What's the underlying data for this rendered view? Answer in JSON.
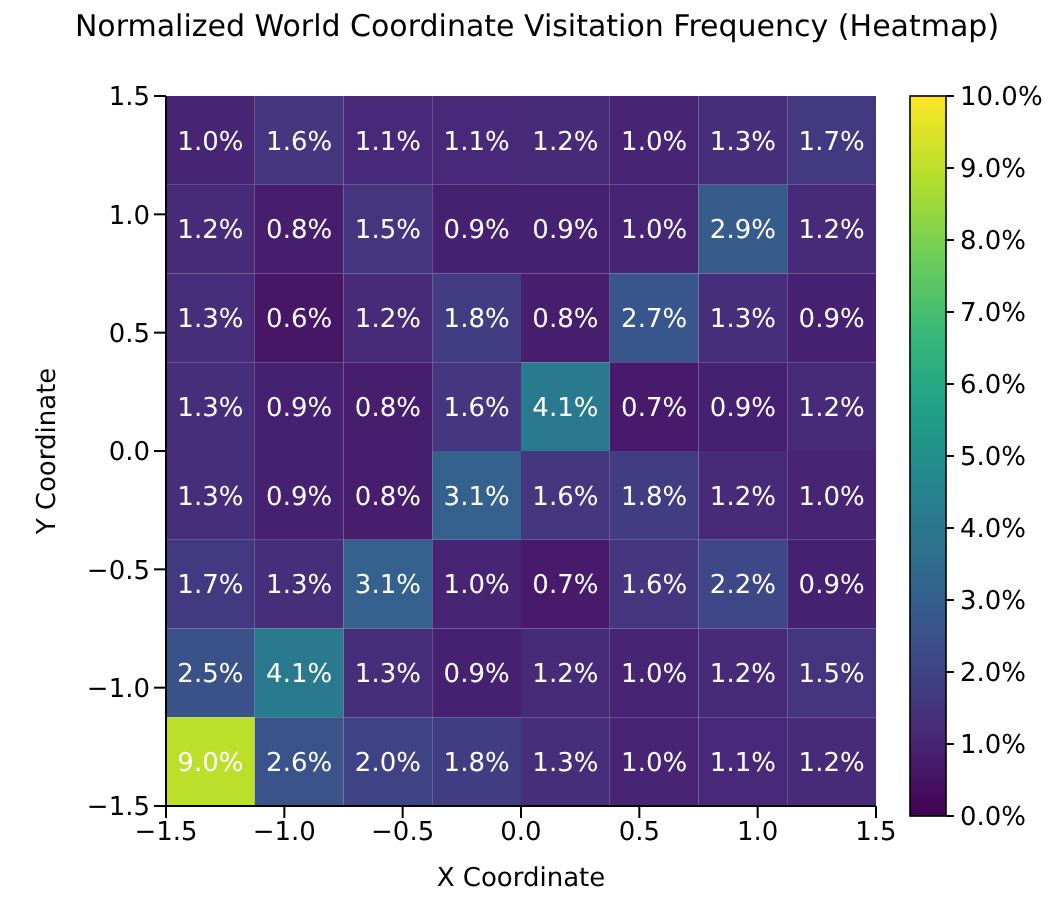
{
  "chart_data": {
    "type": "heatmap",
    "title": "Normalized World Coordinate Visitation Frequency (Heatmap)",
    "xlabel": "X Coordinate",
    "ylabel": "Y Coordinate",
    "xlim": [
      -1.5,
      1.5
    ],
    "xticks": [
      {
        "value": -1.5,
        "label": "−1.5"
      },
      {
        "value": -1,
        "label": "−1.0"
      },
      {
        "value": -0.5,
        "label": "−0.5"
      },
      {
        "value": 0,
        "label": "0.0"
      },
      {
        "value": 0.5,
        "label": "0.5"
      },
      {
        "value": 1,
        "label": "1.0"
      },
      {
        "value": 1.5,
        "label": "1.5"
      }
    ],
    "ylim": [
      -1.5,
      1.5
    ],
    "yticks": [
      {
        "value": -1.5,
        "label": "−1.5"
      },
      {
        "value": -1,
        "label": "−1.0"
      },
      {
        "value": -0.5,
        "label": "−0.5"
      },
      {
        "value": 0,
        "label": "0.0"
      },
      {
        "value": 0.5,
        "label": "0.5"
      },
      {
        "value": 1,
        "label": "1.0"
      },
      {
        "value": 1.5,
        "label": "1.5"
      }
    ],
    "cells": [
      [
        1.0,
        1.6,
        1.1,
        1.1,
        1.2,
        1.0,
        1.3,
        1.7
      ],
      [
        1.2,
        0.8,
        1.5,
        0.9,
        0.9,
        1.0,
        2.9,
        1.2
      ],
      [
        1.3,
        0.6,
        1.2,
        1.8,
        0.8,
        2.7,
        1.3,
        0.9
      ],
      [
        1.3,
        0.9,
        0.8,
        1.6,
        4.1,
        0.7,
        0.9,
        1.2
      ],
      [
        1.3,
        0.9,
        0.8,
        3.1,
        1.6,
        1.8,
        1.2,
        1.0
      ],
      [
        1.7,
        1.3,
        3.1,
        1.0,
        0.7,
        1.6,
        2.2,
        0.9
      ],
      [
        2.5,
        4.1,
        1.3,
        0.9,
        1.2,
        1.0,
        1.2,
        1.5
      ],
      [
        9.0,
        2.6,
        2.0,
        1.8,
        1.3,
        1.0,
        1.1,
        1.2
      ]
    ],
    "cell_labels": [
      [
        "1.0%",
        "1.6%",
        "1.1%",
        "1.1%",
        "1.2%",
        "1.0%",
        "1.3%",
        "1.7%"
      ],
      [
        "1.2%",
        "0.8%",
        "1.5%",
        "0.9%",
        "0.9%",
        "1.0%",
        "2.9%",
        "1.2%"
      ],
      [
        "1.3%",
        "0.6%",
        "1.2%",
        "1.8%",
        "0.8%",
        "2.7%",
        "1.3%",
        "0.9%"
      ],
      [
        "1.3%",
        "0.9%",
        "0.8%",
        "1.6%",
        "4.1%",
        "0.7%",
        "0.9%",
        "1.2%"
      ],
      [
        "1.3%",
        "0.9%",
        "0.8%",
        "3.1%",
        "1.6%",
        "1.8%",
        "1.2%",
        "1.0%"
      ],
      [
        "1.7%",
        "1.3%",
        "3.1%",
        "1.0%",
        "0.7%",
        "1.6%",
        "2.2%",
        "0.9%"
      ],
      [
        "2.5%",
        "4.1%",
        "1.3%",
        "0.9%",
        "1.2%",
        "1.0%",
        "1.2%",
        "1.5%"
      ],
      [
        "9.0%",
        "2.6%",
        "2.0%",
        "1.8%",
        "1.3%",
        "1.0%",
        "1.1%",
        "1.2%"
      ]
    ],
    "clim": [
      0,
      10
    ],
    "cticks": [
      {
        "value": 0,
        "label": "0.0%"
      },
      {
        "value": 1,
        "label": "1.0%"
      },
      {
        "value": 2,
        "label": "2.0%"
      },
      {
        "value": 3,
        "label": "3.0%"
      },
      {
        "value": 4,
        "label": "4.0%"
      },
      {
        "value": 5,
        "label": "5.0%"
      },
      {
        "value": 6,
        "label": "6.0%"
      },
      {
        "value": 7,
        "label": "7.0%"
      },
      {
        "value": 8,
        "label": "8.0%"
      },
      {
        "value": 9,
        "label": "9.0%"
      },
      {
        "value": 10,
        "label": "10.0%"
      }
    ]
  }
}
